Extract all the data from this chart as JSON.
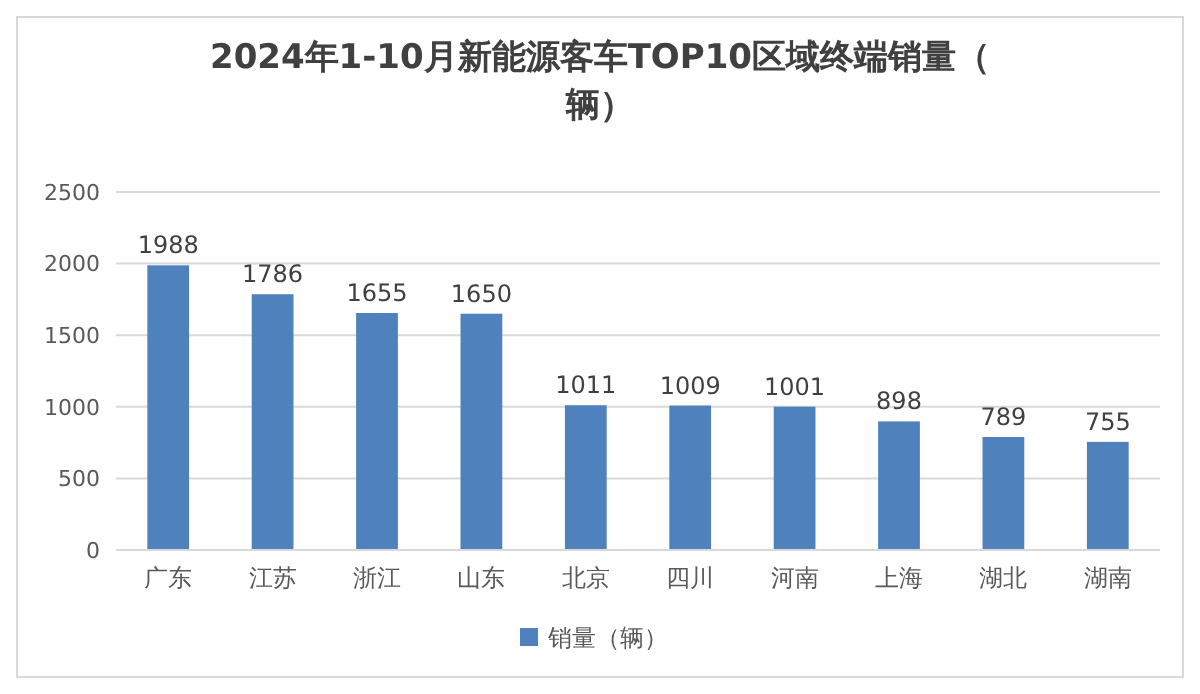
{
  "chart_data": {
    "type": "bar",
    "title": "2024年1-10月新能源客车TOP10区域终端销量（辆）",
    "categories": [
      "广东",
      "江苏",
      "浙江",
      "山东",
      "北京",
      "四川",
      "河南",
      "上海",
      "湖北",
      "湖南"
    ],
    "series": [
      {
        "name": "销量（辆）",
        "color": "#4f81bd",
        "values": [
          1988,
          1786,
          1655,
          1650,
          1011,
          1009,
          1001,
          898,
          789,
          755
        ]
      }
    ],
    "ylim": [
      0,
      2500
    ],
    "yticks": [
      0,
      500,
      1000,
      1500,
      2000,
      2500
    ],
    "grid": "y",
    "legend": "bottom",
    "data_labels": true
  }
}
